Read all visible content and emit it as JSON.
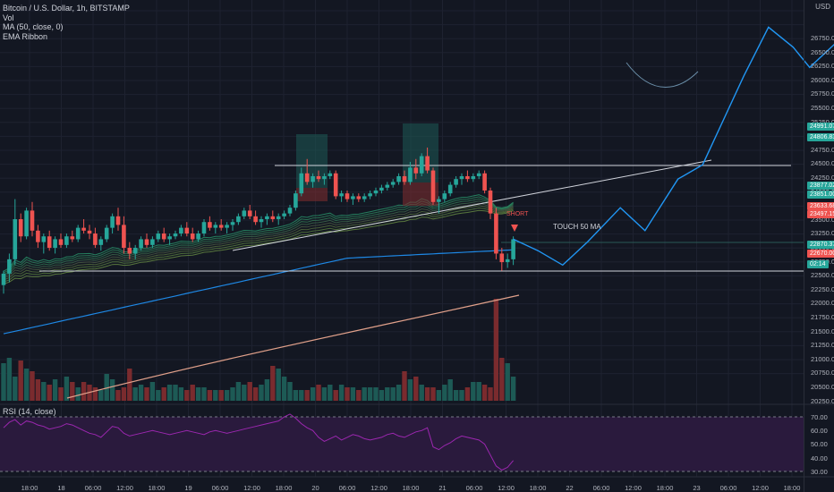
{
  "legend": {
    "symbol_line": "Bitcoin / U.S. Dollar, 1h, BITSTAMP",
    "volume": "Vol",
    "ma": "MA (50, close, 0)",
    "ribbon": "EMA Ribbon"
  },
  "rsi_label": "RSI (14, close)",
  "currency": "USD",
  "price_axis": [
    "26750.00",
    "26500.00",
    "26250.00",
    "26000.00",
    "25750.00",
    "25500.00",
    "25250.00",
    "25000.00",
    "24750.00",
    "24500.00",
    "24250.00",
    "24000.00",
    "23750.00",
    "23500.00",
    "23250.00",
    "23000.00",
    "22750.00",
    "22500.00",
    "22250.00",
    "22000.00",
    "21750.00",
    "21500.00",
    "21250.00",
    "21000.00",
    "20750.00",
    "20500.00",
    "20250.00"
  ],
  "rsi_axis": [
    "70.00",
    "60.00",
    "50.00",
    "40.00",
    "30.00"
  ],
  "time_axis": [
    "18:00",
    "18",
    "06:00",
    "12:00",
    "18:00",
    "19",
    "06:00",
    "12:00",
    "18:00",
    "20",
    "06:00",
    "12:00",
    "18:00",
    "21",
    "06:00",
    "12:00",
    "18:00",
    "22",
    "06:00",
    "12:00",
    "18:00",
    "23",
    "06:00",
    "12:00",
    "18:00"
  ],
  "price_tags": [
    {
      "text": "24991.07",
      "color": "#26a69a"
    },
    {
      "text": "24806.83",
      "color": "#26a69a"
    },
    {
      "text": "23877.02",
      "color": "#26a69a"
    },
    {
      "text": "23851.00",
      "color": "#26a69a"
    },
    {
      "text": "23633.68",
      "color": "#ef5350"
    },
    {
      "text": "23497.15",
      "color": "#ef5350"
    },
    {
      "text": "22870.37",
      "color": "#26a69a"
    },
    {
      "text": "22670.00",
      "color": "#ef5350"
    },
    {
      "text": "02:14",
      "color": "#26a69a"
    }
  ],
  "annotations": {
    "touch": "TOUCH 50 MA",
    "short": "SHORT"
  },
  "colors": {
    "background": "#131722",
    "up": "#26a69a",
    "down": "#ef5350",
    "forecast": "#2196f3",
    "rsi_line": "#9c27b0",
    "rsi_band": "#2a1a3d",
    "ma": "#e0a08a"
  },
  "chart_data": {
    "type": "candlestick",
    "symbol": "Bitcoin / U.S. Dollar",
    "interval": "1h",
    "exchange": "BITSTAMP",
    "ylim": [
      20000,
      26900
    ],
    "resistance": 24450,
    "support": 22350,
    "candles": [
      [
        22050,
        22300,
        21900,
        22250
      ],
      [
        22250,
        22600,
        22100,
        22500
      ],
      [
        22500,
        23550,
        22400,
        23200
      ],
      [
        23200,
        23300,
        22800,
        22900
      ],
      [
        22900,
        23400,
        22850,
        23350
      ],
      [
        23350,
        23500,
        22900,
        23000
      ],
      [
        23000,
        23100,
        22700,
        22800
      ],
      [
        22800,
        22950,
        22600,
        22900
      ],
      [
        22900,
        23000,
        22650,
        22700
      ],
      [
        22700,
        22900,
        22600,
        22850
      ],
      [
        22850,
        22950,
        22700,
        22750
      ],
      [
        22750,
        22950,
        22700,
        22900
      ],
      [
        22900,
        23000,
        22800,
        22850
      ],
      [
        22850,
        23100,
        22800,
        23050
      ],
      [
        23050,
        23200,
        22950,
        23000
      ],
      [
        23000,
        23100,
        22850,
        22950
      ],
      [
        22950,
        23050,
        22700,
        22750
      ],
      [
        22750,
        22900,
        22650,
        22850
      ],
      [
        22850,
        23100,
        22800,
        23050
      ],
      [
        23050,
        23300,
        22950,
        23250
      ],
      [
        23250,
        23400,
        23000,
        23100
      ],
      [
        23100,
        23250,
        22600,
        22700
      ],
      [
        22700,
        22800,
        22500,
        22600
      ],
      [
        22600,
        22750,
        22500,
        22700
      ],
      [
        22700,
        22900,
        22650,
        22850
      ],
      [
        22850,
        22950,
        22700,
        22750
      ],
      [
        22750,
        22900,
        22700,
        22850
      ],
      [
        22850,
        23000,
        22800,
        22950
      ],
      [
        22950,
        23050,
        22800,
        22850
      ],
      [
        22850,
        22950,
        22750,
        22900
      ],
      [
        22900,
        23000,
        22850,
        22950
      ],
      [
        22950,
        23100,
        22900,
        23050
      ],
      [
        23050,
        23150,
        22900,
        22950
      ],
      [
        22950,
        23050,
        22800,
        22850
      ],
      [
        22850,
        23000,
        22800,
        22950
      ],
      [
        22950,
        23200,
        22900,
        23150
      ],
      [
        23150,
        23250,
        23000,
        23050
      ],
      [
        23050,
        23150,
        22950,
        23100
      ],
      [
        23100,
        23200,
        23000,
        23050
      ],
      [
        23050,
        23150,
        22950,
        23100
      ],
      [
        23100,
        23200,
        23000,
        23150
      ],
      [
        23150,
        23300,
        23100,
        23250
      ],
      [
        23250,
        23400,
        23200,
        23350
      ],
      [
        23350,
        23450,
        23200,
        23250
      ],
      [
        23250,
        23350,
        23100,
        23150
      ],
      [
        23150,
        23250,
        23050,
        23200
      ],
      [
        23200,
        23300,
        23100,
        23250
      ],
      [
        23250,
        23350,
        23150,
        23200
      ],
      [
        23200,
        23300,
        23100,
        23250
      ],
      [
        23250,
        23350,
        23200,
        23300
      ],
      [
        23300,
        23450,
        23250,
        23400
      ],
      [
        23400,
        23700,
        23350,
        23650
      ],
      [
        23650,
        24100,
        23600,
        24000
      ],
      [
        24000,
        24250,
        23800,
        23850
      ],
      [
        23850,
        24000,
        23750,
        23950
      ],
      [
        23950,
        24050,
        23850,
        23900
      ],
      [
        23900,
        24000,
        23800,
        23950
      ],
      [
        23950,
        24050,
        23900,
        24000
      ],
      [
        24000,
        24050,
        23550,
        23600
      ],
      [
        23600,
        23700,
        23500,
        23650
      ],
      [
        23650,
        23700,
        23500,
        23550
      ],
      [
        23550,
        23650,
        23450,
        23600
      ],
      [
        23600,
        23650,
        23500,
        23550
      ],
      [
        23550,
        23650,
        23500,
        23600
      ],
      [
        23600,
        23700,
        23550,
        23650
      ],
      [
        23650,
        23750,
        23600,
        23700
      ],
      [
        23700,
        23800,
        23650,
        23750
      ],
      [
        23750,
        23850,
        23700,
        23800
      ],
      [
        23800,
        23900,
        23750,
        23850
      ],
      [
        23850,
        24000,
        23800,
        23950
      ],
      [
        23950,
        24050,
        23800,
        23850
      ],
      [
        23850,
        24200,
        23800,
        24100
      ],
      [
        24100,
        24250,
        23900,
        24000
      ],
      [
        24000,
        24350,
        23950,
        24300
      ],
      [
        24300,
        24450,
        24000,
        24050
      ],
      [
        24050,
        24100,
        23450,
        23500
      ],
      [
        23500,
        23600,
        23300,
        23550
      ],
      [
        23550,
        23700,
        23500,
        23650
      ],
      [
        23650,
        23850,
        23600,
        23800
      ],
      [
        23800,
        23950,
        23750,
        23900
      ],
      [
        23900,
        24000,
        23800,
        23950
      ],
      [
        23950,
        24050,
        23850,
        23900
      ],
      [
        23900,
        24000,
        23850,
        23950
      ],
      [
        23950,
        24050,
        23900,
        24000
      ],
      [
        24000,
        24050,
        23650,
        23700
      ],
      [
        23700,
        23750,
        23200,
        23300
      ],
      [
        23300,
        23400,
        22500,
        22600
      ],
      [
        22600,
        22700,
        22300,
        22450
      ],
      [
        22450,
        22600,
        22350,
        22500
      ],
      [
        22500,
        22900,
        22400,
        22850
      ]
    ],
    "forecast_path": [
      [
        22850,
        0
      ],
      [
        22650,
        3
      ],
      [
        22400,
        6
      ],
      [
        22800,
        9
      ],
      [
        23400,
        13
      ],
      [
        23000,
        16
      ],
      [
        23900,
        20
      ],
      [
        24150,
        23
      ],
      [
        25700,
        28
      ],
      [
        26550,
        31
      ],
      [
        26200,
        34
      ],
      [
        25850,
        36
      ],
      [
        26250,
        39
      ],
      [
        25450,
        43
      ],
      [
        26650,
        46
      ],
      [
        26350,
        47
      ],
      [
        26400,
        48
      ]
    ],
    "rsi": [
      62,
      66,
      68,
      64,
      67,
      66,
      64,
      63,
      61,
      62,
      63,
      65,
      64,
      62,
      60,
      58,
      57,
      55,
      59,
      63,
      62,
      58,
      56,
      57,
      58,
      59,
      60,
      59,
      58,
      57,
      58,
      59,
      60,
      59,
      58,
      57,
      59,
      60,
      59,
      58,
      59,
      60,
      61,
      62,
      63,
      64,
      65,
      66,
      67,
      70,
      72,
      69,
      65,
      62,
      60,
      55,
      52,
      54,
      56,
      53,
      55,
      57,
      56,
      54,
      53,
      54,
      55,
      57,
      58,
      56,
      55,
      57,
      59,
      60,
      62,
      48,
      46,
      49,
      51,
      54,
      56,
      55,
      54,
      53,
      50,
      42,
      34,
      31,
      33,
      38
    ],
    "volume": [
      14,
      16,
      9,
      15,
      12,
      11,
      8,
      7,
      6,
      8,
      5,
      9,
      7,
      5,
      7,
      6,
      5,
      4,
      10,
      8,
      4,
      5,
      12,
      5,
      6,
      5,
      7,
      4,
      5,
      6,
      6,
      5,
      4,
      6,
      5,
      5,
      4,
      4,
      4,
      4,
      5,
      7,
      6,
      7,
      5,
      6,
      8,
      13,
      12,
      9,
      7,
      4,
      4,
      4,
      5,
      6,
      5,
      6,
      4,
      6,
      5,
      5,
      4,
      5,
      5,
      5,
      4,
      5,
      5,
      6,
      11,
      8,
      9,
      6,
      5,
      5,
      4,
      6,
      8,
      4,
      4,
      5,
      7,
      7,
      6,
      5,
      38,
      16,
      14,
      9
    ]
  }
}
